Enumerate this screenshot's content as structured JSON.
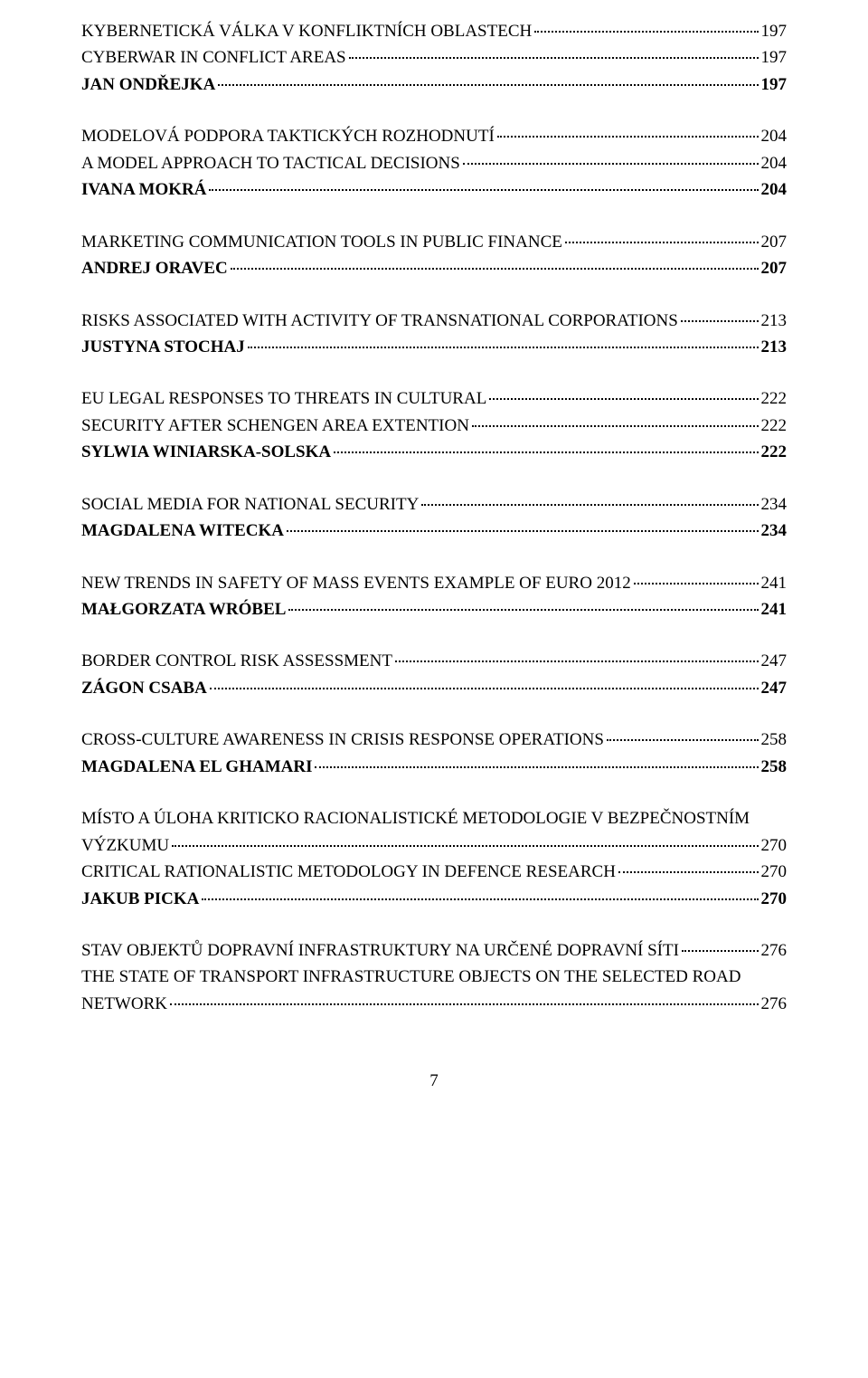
{
  "page_number": "7",
  "groups": [
    {
      "lines": [
        {
          "label": "KYBERNETICKÁ VÁLKA V KONFLIKTNÍCH OBLASTECH",
          "page": "197",
          "bold": false,
          "upper": true
        },
        {
          "label": "CYBERWAR IN CONFLICT AREAS",
          "page": "197",
          "bold": false,
          "upper": true
        },
        {
          "label": "JAN ONDŘEJKA",
          "page": "197",
          "bold": true,
          "upper": true
        }
      ]
    },
    {
      "lines": [
        {
          "label": "MODELOVÁ PODPORA TAKTICKÝCH ROZHODNUTÍ",
          "page": "204",
          "bold": false,
          "upper": true
        },
        {
          "label": "A MODEL APPROACH TO TACTICAL DECISIONS",
          "page": "204",
          "bold": false,
          "upper": true
        },
        {
          "label": "IVANA MOKRÁ",
          "page": "204",
          "bold": true,
          "upper": true
        }
      ]
    },
    {
      "lines": [
        {
          "label": "MARKETING COMMUNICATION TOOLS IN PUBLIC FINANCE",
          "page": "207",
          "bold": false,
          "upper": true
        },
        {
          "label": "ANDREJ ORAVEC",
          "page": "207",
          "bold": true,
          "upper": true
        }
      ]
    },
    {
      "lines": [
        {
          "label": "RISKS ASSOCIATED WITH ACTIVITY OF TRANSNATIONAL CORPORATIONS",
          "page": "213",
          "bold": false,
          "upper": true
        },
        {
          "label": "JUSTYNA STOCHAJ",
          "page": "213",
          "bold": true,
          "upper": true
        }
      ]
    },
    {
      "lines": [
        {
          "label": "EU LEGAL RESPONSES TO THREATS IN CULTURAL",
          "page": "222",
          "bold": false,
          "upper": true
        },
        {
          "label": "SECURITY AFTER SCHENGEN AREA EXTENTION",
          "page": "222",
          "bold": false,
          "upper": true
        },
        {
          "label": "SYLWIA WINIARSKA-SOLSKA",
          "page": "222",
          "bold": true,
          "upper": true
        }
      ]
    },
    {
      "lines": [
        {
          "label": "SOCIAL MEDIA FOR NATIONAL SECURITY",
          "page": "234",
          "bold": false,
          "upper": true
        },
        {
          "label": "MAGDALENA WITECKA",
          "page": "234",
          "bold": true,
          "upper": true
        }
      ]
    },
    {
      "lines": [
        {
          "label": "NEW TRENDS IN SAFETY OF MASS EVENTS EXAMPLE OF EURO 2012",
          "page": "241",
          "bold": false,
          "upper": true
        },
        {
          "label": "MAŁGORZATA WRÓBEL",
          "page": "241",
          "bold": true,
          "upper": true
        }
      ]
    },
    {
      "lines": [
        {
          "label": "BORDER CONTROL RISK ASSESSMENT",
          "page": "247",
          "bold": false,
          "upper": true
        },
        {
          "label": "ZÁGON CSABA",
          "page": "247",
          "bold": true,
          "upper": true
        }
      ]
    },
    {
      "lines": [
        {
          "label": "CROSS-CULTURE AWARENESS IN CRISIS RESPONSE OPERATIONS",
          "page": "258",
          "bold": false,
          "upper": true
        },
        {
          "label": "MAGDALENA EL GHAMARI",
          "page": "258",
          "bold": true,
          "upper": true
        }
      ]
    },
    {
      "lines": [
        {
          "label": "MÍSTO A ÚLOHA KRITICKO RACIONALISTICKÉ METODOLOGIE V BEZPEČNOSTNÍM VÝZKUMU",
          "page": "270",
          "bold": false,
          "upper": true,
          "wrap": true
        },
        {
          "label": "CRITICAL RATIONALISTIC METODOLOGY IN DEFENCE RESEARCH",
          "page": "270",
          "bold": false,
          "upper": true
        },
        {
          "label": "JAKUB PICKA",
          "page": "270",
          "bold": true,
          "upper": true
        }
      ]
    },
    {
      "lines": [
        {
          "label": "STAV OBJEKTŮ DOPRAVNÍ INFRASTRUKTURY NA URČENÉ DOPRAVNÍ SÍTI",
          "page": "276",
          "bold": false,
          "upper": true
        },
        {
          "label": "THE STATE OF TRANSPORT INFRASTRUCTURE OBJECTS ON THE SELECTED ROAD NETWORK",
          "page": "276",
          "bold": false,
          "upper": true,
          "wrap": true
        }
      ]
    }
  ]
}
